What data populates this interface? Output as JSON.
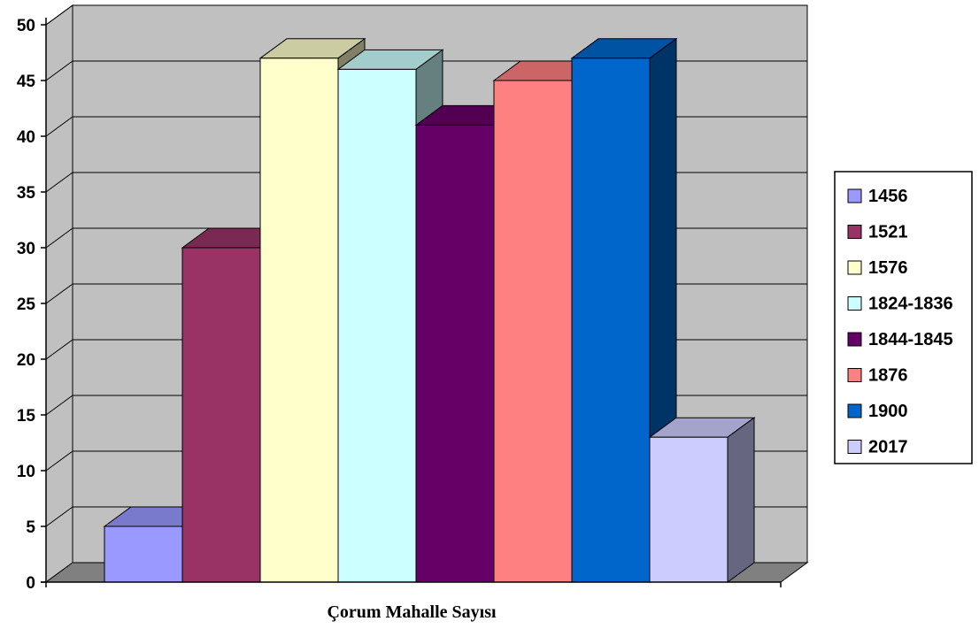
{
  "chart_data": {
    "type": "bar",
    "style": "3d-clustered-column",
    "title": "",
    "xlabel": "Çorum Mahalle Sayısı",
    "ylabel": "",
    "ylim": [
      0,
      50
    ],
    "yticks": [
      "0",
      "5",
      "10",
      "15",
      "20",
      "25",
      "30",
      "35",
      "40",
      "45",
      "50"
    ],
    "grid": true,
    "legend_position": "right",
    "series": [
      {
        "name": "1456",
        "value": 5,
        "color": "#9999FF"
      },
      {
        "name": "1521",
        "value": 30,
        "color": "#993366"
      },
      {
        "name": "1576",
        "value": 47,
        "color": "#FFFFCC"
      },
      {
        "name": "1824-1836",
        "value": 46,
        "color": "#CCFFFF"
      },
      {
        "name": "1844-1845",
        "value": 41,
        "color": "#660066"
      },
      {
        "name": "1876",
        "value": 45,
        "color": "#FF8080"
      },
      {
        "name": "1900",
        "value": 47,
        "color": "#0066CC"
      },
      {
        "name": "2017",
        "value": 13,
        "color": "#CCCCFF"
      }
    ]
  }
}
